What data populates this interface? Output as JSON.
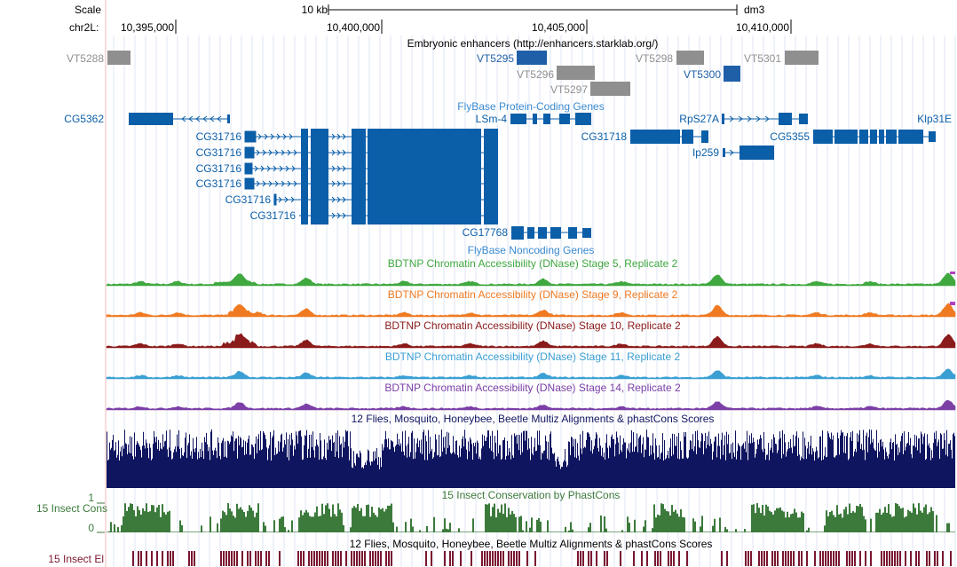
{
  "ruler": {
    "scale_label": "Scale",
    "chrom_label": "chr2L:",
    "scale_bar_label": "10 kb",
    "assembly": "dm3",
    "positions": [
      "10,395,000",
      "10,400,000",
      "10,405,000",
      "10,410,000"
    ]
  },
  "tracks": {
    "enhancers": {
      "title": "Embryonic enhancers (http://enhancers.starklab.org/)",
      "items": [
        {
          "name": "VT5288",
          "color": "#8f8f8f"
        },
        {
          "name": "VT5295",
          "color": "#1f5fa8"
        },
        {
          "name": "VT5296",
          "color": "#8f8f8f"
        },
        {
          "name": "VT5297",
          "color": "#8f8f8f"
        },
        {
          "name": "VT5298",
          "color": "#8f8f8f"
        },
        {
          "name": "VT5300",
          "color": "#1f5fa8"
        },
        {
          "name": "VT5301",
          "color": "#8f8f8f"
        }
      ]
    },
    "genes": {
      "title": "FlyBase Protein-Coding Genes",
      "color": "#0b5ea8",
      "items": [
        {
          "name": "CG5362"
        },
        {
          "name": "LSm-4"
        },
        {
          "name": "RpS27A"
        },
        {
          "name": "Klp31E"
        },
        {
          "name": "CG31718"
        },
        {
          "name": "CG5355"
        },
        {
          "name": "Ip259"
        },
        {
          "name": "CG31716"
        },
        {
          "name": "CG31716"
        },
        {
          "name": "CG31716"
        },
        {
          "name": "CG31716"
        },
        {
          "name": "CG31716"
        },
        {
          "name": "CG31716"
        }
      ]
    },
    "noncoding": {
      "title": "FlyBase Noncoding Genes",
      "items": [
        {
          "name": "CG17768"
        }
      ]
    },
    "dnase": [
      {
        "title": "BDTNP Chromatin Accessibility (DNase) Stage 5, Replicate 2",
        "color": "#3fa83f"
      },
      {
        "title": "BDTNP Chromatin Accessibility (DNase) Stage 9, Replicate 2",
        "color": "#f07a22"
      },
      {
        "title": "BDTNP Chromatin Accessibility (DNase) Stage 10, Replicate 2",
        "color": "#8b1a1a"
      },
      {
        "title": "BDTNP Chromatin Accessibility (DNase) Stage 11, Replicate 2",
        "color": "#3a9fd3"
      },
      {
        "title": "BDTNP Chromatin Accessibility (DNase) Stage 14, Replicate 2",
        "color": "#7b3fa6"
      }
    ],
    "multiz": {
      "title": "12 Flies, Mosquito, Honeybee, Beetle Multiz Alignments & phastCons Scores",
      "color": "#101560"
    },
    "phastcons": {
      "title": "15 Insect Conservation by PhastCons",
      "side_label": "15 Insect Cons",
      "ymax": "1",
      "ymin": "0",
      "color": "#3c7a3c"
    },
    "elements": {
      "title": "12 Flies, Mosquito, Honeybee, Beetle Multiz Alignments & phastCons Scores",
      "side_label": "15 Insect El",
      "color": "#7a1630"
    }
  }
}
